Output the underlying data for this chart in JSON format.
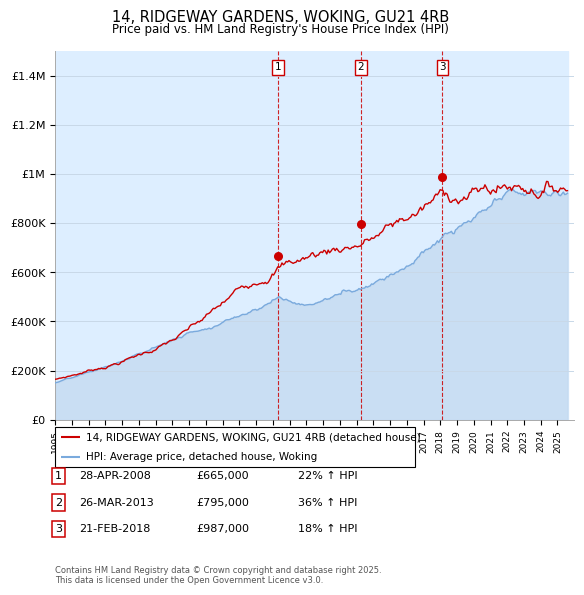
{
  "title": "14, RIDGEWAY GARDENS, WOKING, GU21 4RB",
  "subtitle": "Price paid vs. HM Land Registry's House Price Index (HPI)",
  "background_color": "#ffffff",
  "grid_color": "#c8d8e8",
  "sale_color": "#cc0000",
  "hpi_color": "#7aaadd",
  "fill_color": "#ddeeff",
  "ylim": [
    0,
    1500000
  ],
  "yticks": [
    0,
    200000,
    400000,
    600000,
    800000,
    1000000,
    1200000,
    1400000
  ],
  "ytick_labels": [
    "£0",
    "£200K",
    "£400K",
    "£600K",
    "£800K",
    "£1M",
    "£1.2M",
    "£1.4M"
  ],
  "xmin": 1995,
  "xmax": 2026,
  "sales": [
    {
      "date_num": 2008.33,
      "price": 665000,
      "label": "1"
    },
    {
      "date_num": 2013.25,
      "price": 795000,
      "label": "2"
    },
    {
      "date_num": 2018.13,
      "price": 987000,
      "label": "3"
    }
  ],
  "sale_annotations": [
    {
      "label": "1",
      "date": "28-APR-2008",
      "price": "£665,000",
      "pct": "22% ↑ HPI"
    },
    {
      "label": "2",
      "date": "26-MAR-2013",
      "price": "£795,000",
      "pct": "36% ↑ HPI"
    },
    {
      "label": "3",
      "date": "21-FEB-2018",
      "price": "£987,000",
      "pct": "18% ↑ HPI"
    }
  ],
  "legend_label_sale": "14, RIDGEWAY GARDENS, WOKING, GU21 4RB (detached house)",
  "legend_label_hpi": "HPI: Average price, detached house, Woking",
  "footer": "Contains HM Land Registry data © Crown copyright and database right 2025.\nThis data is licensed under the Open Government Licence v3.0."
}
